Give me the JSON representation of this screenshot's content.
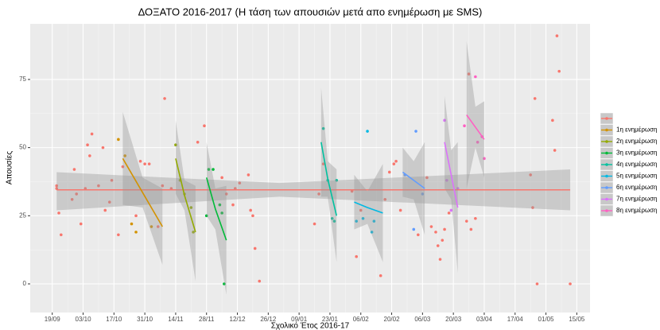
{
  "chart_data": {
    "type": "scatter",
    "title": "ΔΟΞΑΤΟ 2016-2017 (Η τάση των απουσιών μετά απο ενημέρωση με SMS)",
    "x_label": "Σχολικό Έτος 2016-17",
    "y_label": "Απουσίες",
    "xlim": [
      "09/09",
      "21/05"
    ],
    "xticks": [
      "19/09",
      "03/10",
      "17/10",
      "31/10",
      "14/11",
      "28/11",
      "12/12",
      "26/12",
      "09/01",
      "23/01",
      "06/02",
      "20/02",
      "06/03",
      "20/03",
      "03/04",
      "17/04",
      "01/05",
      "15/05"
    ],
    "ylim": [
      -10.5,
      95.4
    ],
    "yticks": [
      0,
      25,
      50,
      75
    ],
    "grid": true,
    "legend": "right",
    "series": [
      {
        "name": null,
        "color": "#F8766D",
        "x": [
          "21/09",
          "22/09",
          "23/09",
          "21/09",
          "28/09",
          "29/09",
          "30/09",
          "02/10",
          "04/10",
          "05/10",
          "07/10",
          "06/10",
          "10/10",
          "12/10",
          "13/10",
          "15/10",
          "16/10",
          "19/10",
          "21/10",
          "27/10",
          "29/10",
          "31/10",
          "02/11",
          "06/11",
          "08/11",
          "09/11",
          "12/11",
          "24/11",
          "27/11",
          "05/12",
          "07/12",
          "10/12",
          "11/12",
          "13/12",
          "17/12",
          "18/12",
          "19/12",
          "20/12",
          "22/12",
          "16/01",
          "18/01",
          "20/01",
          "02/02",
          "04/02",
          "06/02",
          "15/02",
          "17/02",
          "19/02",
          "21/02",
          "22/02",
          "24/02",
          "04/03",
          "08/03",
          "10/03",
          "12/03",
          "13/03",
          "14/03",
          "15/03",
          "16/03",
          "18/03",
          "26/03",
          "27/03",
          "28/03",
          "30/03",
          "24/04",
          "25/04",
          "26/04",
          "27/04",
          "04/05",
          "05/05",
          "06/05",
          "07/05",
          "12/05"
        ],
        "values": [
          35,
          26,
          18,
          36,
          31,
          42,
          33,
          22,
          35,
          51,
          55,
          47,
          36,
          50,
          27,
          30,
          38,
          18,
          43,
          25,
          45,
          44,
          44,
          21,
          36,
          68,
          35,
          52,
          58,
          39,
          33,
          29,
          35,
          37,
          40,
          27,
          25,
          13,
          1,
          22,
          33,
          44,
          34,
          10,
          27,
          3,
          31,
          41,
          44,
          45,
          27,
          18,
          39,
          21,
          19,
          14,
          9,
          16,
          20,
          26,
          23,
          77,
          20,
          24,
          40,
          28,
          68,
          0,
          60,
          49,
          91,
          78,
          0
        ],
        "fit": {
          "x": [
            "21/09",
            "31/12",
            "12/05"
          ],
          "y": [
            34.5,
            34.5,
            34.5
          ],
          "lower": [
            27,
            32,
            27
          ],
          "upper": [
            41,
            37,
            42
          ]
        }
      },
      {
        "name": "1η ενημέρωση",
        "color": "#D39200",
        "x": [
          "19/10",
          "22/10",
          "25/10",
          "27/10",
          "03/11"
        ],
        "values": [
          53,
          47,
          22,
          19,
          21
        ],
        "fit": {
          "x": [
            "21/10",
            "30/10",
            "08/11"
          ],
          "y": [
            46,
            33.5,
            21
          ],
          "lower": [
            29,
            28,
            7
          ],
          "upper": [
            63,
            39,
            35
          ]
        }
      },
      {
        "name": "2η ενημέρωση",
        "color": "#93AA00",
        "x": [
          "14/11",
          "16/11",
          "18/11",
          "21/11",
          "22/11"
        ],
        "values": [
          51,
          38,
          33,
          28,
          19
        ],
        "fit": {
          "x": [
            "14/11",
            "18/11",
            "23/11"
          ],
          "y": [
            46,
            32.5,
            19
          ],
          "lower": [
            33,
            27,
            1
          ],
          "upper": [
            60,
            38,
            36
          ]
        }
      },
      {
        "name": "3η ενημέρωση",
        "color": "#00BA38",
        "x": [
          "28/11",
          "29/11",
          "01/12",
          "04/12",
          "05/12",
          "06/12"
        ],
        "values": [
          25,
          42,
          42,
          29,
          26,
          0
        ],
        "fit": {
          "x": [
            "28/11",
            "02/12",
            "07/12"
          ],
          "y": [
            39,
            27.5,
            16
          ],
          "lower": [
            25,
            20,
            -4
          ],
          "upper": [
            52,
            35,
            36
          ]
        }
      },
      {
        "name": "4η ενημέρωση",
        "color": "#00C19F",
        "x": [
          "20/01",
          "22/01",
          "24/01",
          "25/01",
          "26/01"
        ],
        "values": [
          57,
          38,
          24,
          23,
          38
        ],
        "fit": {
          "x": [
            "19/01",
            "22/01",
            "26/01"
          ],
          "y": [
            52,
            38.5,
            25
          ],
          "lower": [
            32,
            32,
            8
          ],
          "upper": [
            72,
            45,
            42
          ]
        }
      },
      {
        "name": "5η ενημέρωση",
        "color": "#00B9E3",
        "x": [
          "04/02",
          "07/02",
          "09/02",
          "11/02",
          "12/02"
        ],
        "values": [
          23,
          24,
          56,
          19,
          23
        ],
        "fit": {
          "x": [
            "03/02",
            "09/02",
            "16/02"
          ],
          "y": [
            30,
            28,
            26
          ],
          "lower": [
            20,
            22,
            8
          ],
          "upper": [
            40,
            34,
            44
          ]
        }
      },
      {
        "name": "6η ενημέρωση",
        "color": "#619CFF",
        "x": [
          "26/02",
          "02/03",
          "03/03",
          "06/03"
        ],
        "values": [
          40,
          20,
          56,
          33
        ],
        "fit": {
          "x": [
            "25/02",
            "02/03",
            "07/03"
          ],
          "y": [
            41,
            38,
            35
          ],
          "lower": [
            32,
            31,
            18
          ],
          "upper": [
            50,
            45,
            52
          ]
        }
      },
      {
        "name": "7η ενημέρωση",
        "color": "#DB72FB",
        "x": [
          "16/03",
          "17/03",
          "19/03",
          "22/03"
        ],
        "values": [
          60,
          38,
          27,
          35
        ],
        "fit": {
          "x": [
            "16/03",
            "19/03",
            "22/03"
          ],
          "y": [
            52,
            40,
            28
          ],
          "lower": [
            35,
            31,
            4
          ],
          "upper": [
            69,
            49,
            52
          ]
        }
      },
      {
        "name": "8η ενημέρωση",
        "color": "#FF61C3",
        "x": [
          "25/03",
          "30/03",
          "31/03",
          "02/04",
          "03/04"
        ],
        "values": [
          58,
          76,
          52,
          54,
          46
        ],
        "fit": {
          "x": [
            "26/03",
            "30/03",
            "03/04"
          ],
          "y": [
            62,
            57.5,
            53
          ],
          "lower": [
            35,
            50,
            39
          ],
          "upper": [
            89,
            65,
            67
          ]
        }
      }
    ]
  }
}
